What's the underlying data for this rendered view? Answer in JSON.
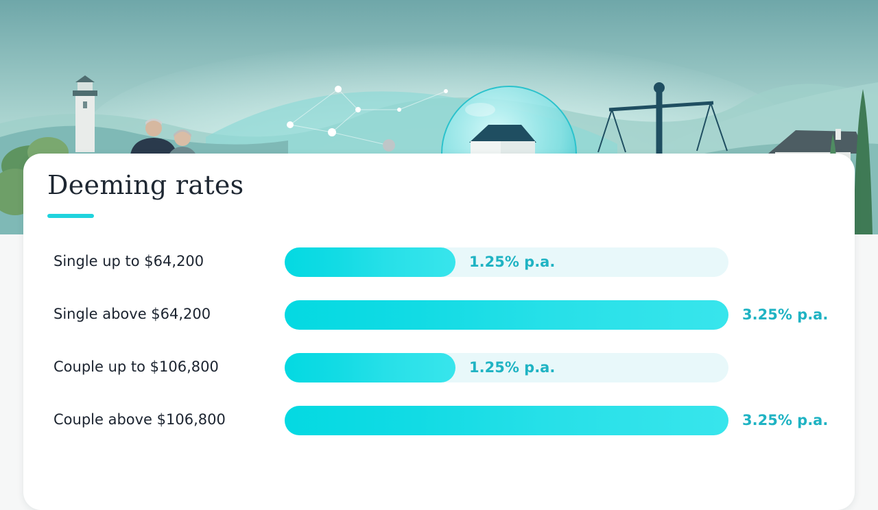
{
  "page": {
    "title": "Deeming rates",
    "accent_color": "#1fd3dd"
  },
  "chart_data": {
    "type": "bar",
    "orientation": "horizontal",
    "title": "Deeming rates",
    "categories": [
      "Single up to $64,200",
      "Single above $64,200",
      "Couple up to $106,800",
      "Couple above $106,800"
    ],
    "values": [
      1.25,
      3.25,
      1.25,
      3.25
    ],
    "value_labels": [
      "1.25% p.a.",
      "3.25% p.a.",
      "1.25% p.a.",
      "3.25% p.a."
    ],
    "xlim": [
      0,
      3.25
    ],
    "grid": false,
    "bar_color": "#12dbe4",
    "track_color": "#e8f8fa",
    "value_label_color": "#1fb3c3"
  },
  "hero": {
    "icons": [
      "lighthouse-icon",
      "retired-couple-icon",
      "house-bubble-icon",
      "balance-scale-icon",
      "house-icon",
      "tree-icon"
    ]
  }
}
